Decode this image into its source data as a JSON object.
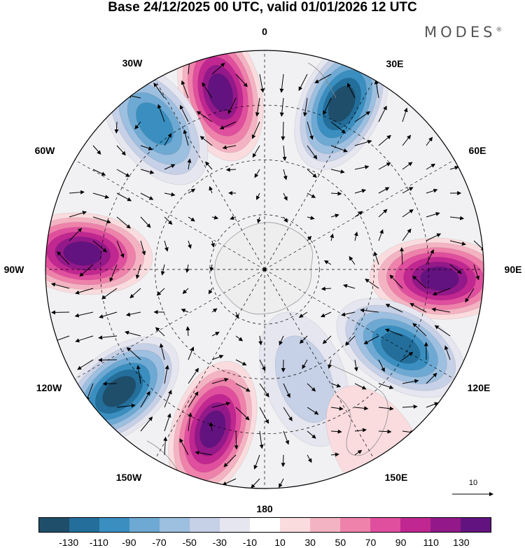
{
  "title": "Base 24/12/2025 00 UTC, valid 01/01/2026 12 UTC",
  "brand": "MODES",
  "brand_mark": "®",
  "longitude_labels": {
    "n": "0",
    "ne30": "30E",
    "ne60": "60E",
    "e": "90E",
    "se120": "120E",
    "se150": "150E",
    "s": "180",
    "sw150": "150W",
    "sw120": "120W",
    "w": "90W",
    "nw60": "60W",
    "nw30": "30W"
  },
  "colorbar": {
    "colors": [
      "#1f4e6b",
      "#236e9a",
      "#3a8fc0",
      "#6ea9d3",
      "#9dbfe0",
      "#c6d0e6",
      "#e6e6f0",
      "#ffffff",
      "#fbdcde",
      "#f4b3c2",
      "#ee82ab",
      "#e04f9e",
      "#c02790",
      "#93198a",
      "#63137f"
    ],
    "tick_labels": [
      "-130",
      "-110",
      "-90",
      "-70",
      "-50",
      "-30",
      "-10",
      "10",
      "30",
      "50",
      "70",
      "90",
      "110",
      "130"
    ]
  },
  "vector_reference": {
    "label": "10"
  },
  "map_data": {
    "projection": "south-polar-stereographic",
    "field": "anomaly (-130 .. 130)",
    "anomaly_centers": [
      {
        "lon": -14,
        "lat": -40,
        "value": 130
      },
      {
        "lon": 25,
        "lat": -40,
        "value": -135
      },
      {
        "lon": 93,
        "lat": -42,
        "value": 130
      },
      {
        "lon": 120,
        "lat": -47,
        "value": -120
      },
      {
        "lon": 160,
        "lat": -58,
        "value": -40
      },
      {
        "lon": 148,
        "lat": -32,
        "value": 20
      },
      {
        "lon": -162,
        "lat": -44,
        "value": 130
      },
      {
        "lon": -130,
        "lat": -38,
        "value": -140
      },
      {
        "lon": -85,
        "lat": -40,
        "value": 130
      },
      {
        "lon": -37,
        "lat": -40,
        "value": -85
      }
    ]
  }
}
